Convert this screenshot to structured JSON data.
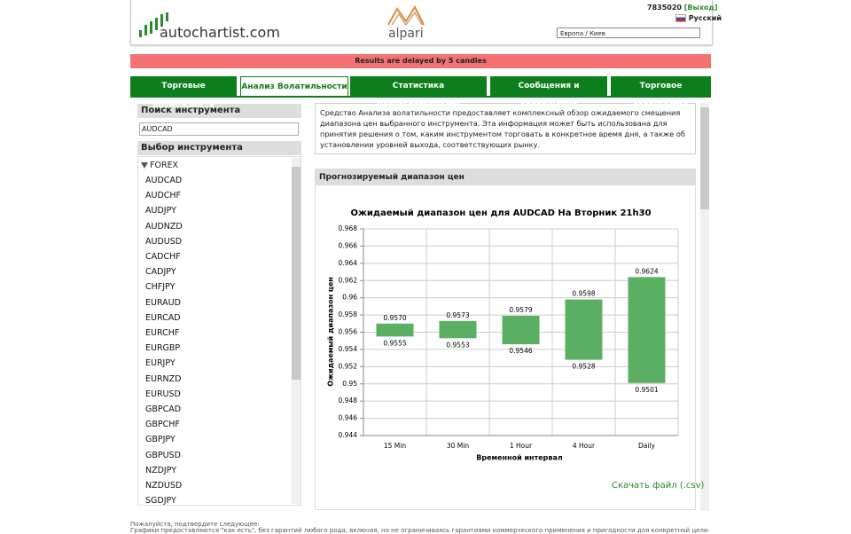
{
  "header": {
    "logo": "autochartist.com",
    "partner": "alpari",
    "account": "7835020",
    "logout": "[Выход]",
    "language": "Русский",
    "timezone": "Европа / Киев"
  },
  "banner": "Results are delayed by 5 candles",
  "tabs": [
    "Торговые Возможности",
    "Анализ Волатильности",
    "Статистика Результативности",
    "Сообщения и оповещения",
    "Торговое сообщество"
  ],
  "sidebar": {
    "search_title": "Поиск инструмента",
    "search_value": "AUDCAD",
    "select_title": "Выбор инструмента",
    "group": "FOREX",
    "instruments": [
      "AUDCAD",
      "AUDCHF",
      "AUDJPY",
      "AUDNZD",
      "AUDUSD",
      "CADCHF",
      "CADJPY",
      "CHFJPY",
      "EURAUD",
      "EURCAD",
      "EURCHF",
      "EURGBP",
      "EURJPY",
      "EURNZD",
      "EURUSD",
      "GBPCAD",
      "GBPCHF",
      "GBPJPY",
      "GBPUSD",
      "NZDJPY",
      "NZDUSD",
      "SGDJPY"
    ]
  },
  "description": "Средство Анализа волатильности предоставляет комплексный обзор ожидаемого смещения диапазона цен выбранного инструмента. Эта информация может быть использована для принятия решения о том, каким инструментом торговать в конкретное время дня, а также об установлении уровней выхода, соответствующих рынку.",
  "panel_title": "Прогнозируемый диапазон цен",
  "chart_data": {
    "type": "range-bar",
    "title": "Ожидаемый диапазон цен для AUDCAD На  Вторник 21h30",
    "x_label": "Временной интервал",
    "y_label": "Ожидаемый диапазон цен",
    "categories": [
      "15 Min",
      "30 Min",
      "1 Hour",
      "4 Hour",
      "Daily"
    ],
    "values": [
      [
        0.9555,
        0.957
      ],
      [
        0.9553,
        0.9573
      ],
      [
        0.9546,
        0.9579
      ],
      [
        0.9528,
        0.9598
      ],
      [
        0.9501,
        0.9624
      ]
    ],
    "value_labels": [
      [
        "0.9555",
        "0.9570"
      ],
      [
        "0.9553",
        "0.9573"
      ],
      [
        "0.9546",
        "0.9579"
      ],
      [
        "0.9528",
        "0.9598"
      ],
      [
        "0.9501",
        "0.9624"
      ]
    ],
    "color": "#5aaf62",
    "ylim": [
      0.944,
      0.968
    ],
    "yticks": [
      0.944,
      0.946,
      0.948,
      0.95,
      0.952,
      0.954,
      0.956,
      0.958,
      0.96,
      0.962,
      0.964,
      0.966,
      0.968
    ],
    "grid": true
  },
  "download": "Скачать файл (.csv)",
  "footer": {
    "notice": "Пожалуйста, подтвердите следующее:",
    "disclaimer": "Графики предоставляются \"как есть\", без гарантий любого рода, включая, но не ограничиваясь гарантиями коммерческого применения и пригодности для конкретной цели. MDIO Software и его аффилированные"
  }
}
